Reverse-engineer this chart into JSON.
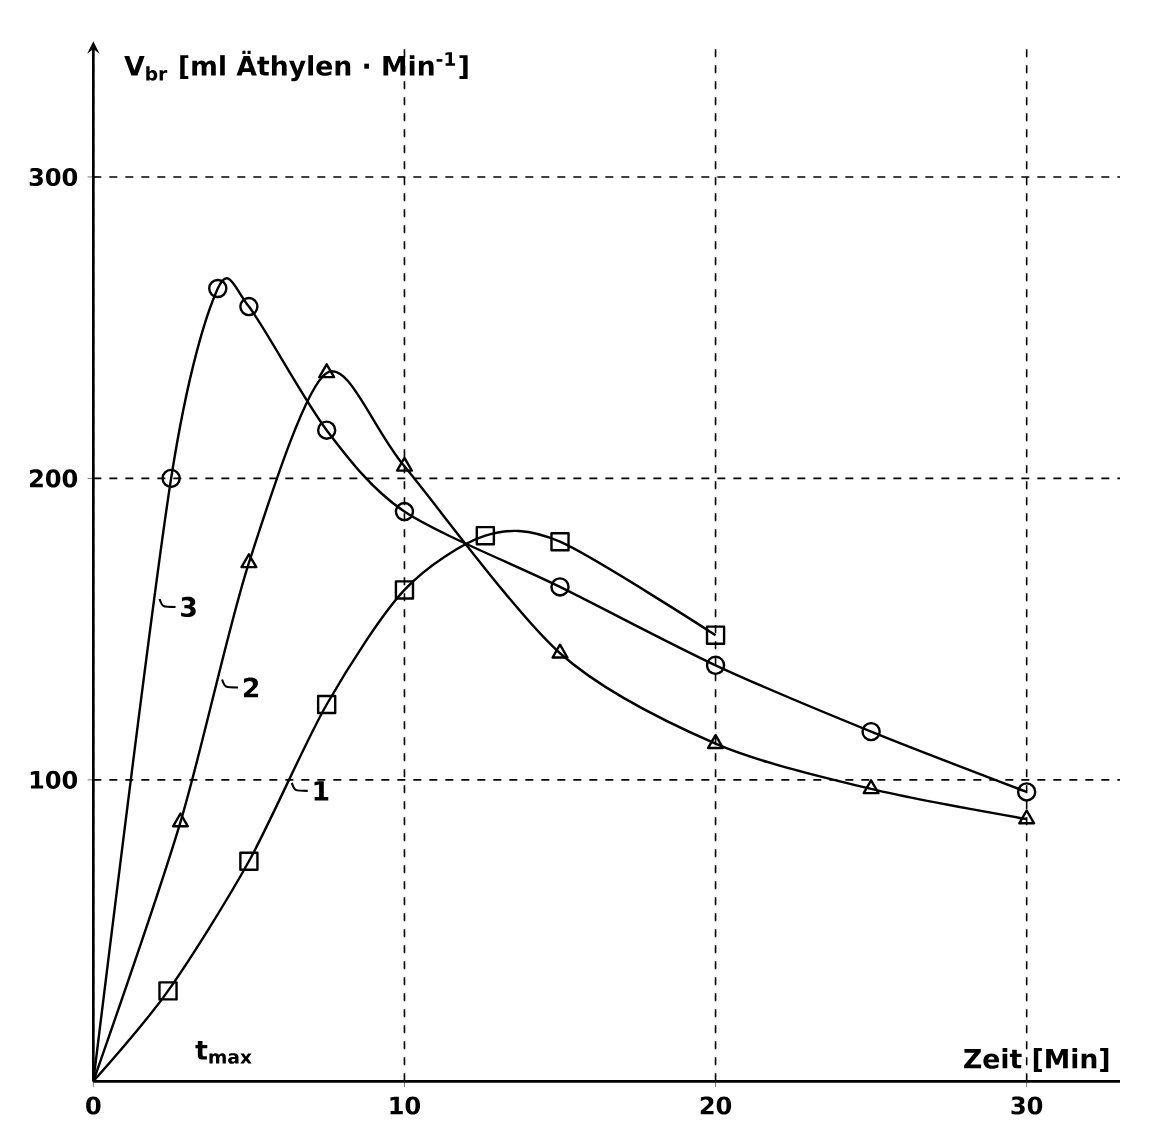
{
  "chart_data": {
    "type": "line",
    "xlabel": "Zeit [Min]",
    "ylabel": "V$_{br}$ [ml Äthylen · Min$^{-1}$]",
    "xlim": [
      0,
      33
    ],
    "ylim": [
      0,
      345
    ],
    "xticks": [
      0,
      10,
      20,
      30
    ],
    "yticks": [
      100,
      200,
      300
    ],
    "grid": true,
    "legend": "left",
    "line_style": "solid",
    "series": [
      {
        "name": "1",
        "color": "#000000",
        "marker": "square",
        "x": [
          0,
          2.4,
          5,
          7.5,
          10,
          12.6,
          15,
          20
        ],
        "values": [
          0,
          30,
          73,
          125,
          163,
          181,
          179,
          148
        ]
      },
      {
        "name": "2",
        "color": "#000000",
        "marker": "triangle",
        "x": [
          0,
          2.8,
          5,
          7.5,
          10,
          15,
          20,
          25,
          30
        ],
        "values": [
          0,
          86,
          172,
          235,
          204,
          142,
          112,
          97,
          87
        ]
      },
      {
        "name": "3",
        "color": "#000000",
        "marker": "circle",
        "x": [
          0,
          2.5,
          4,
          5,
          7.5,
          10,
          15,
          20,
          25,
          30
        ],
        "values": [
          0,
          200,
          263,
          257,
          216,
          189,
          164,
          138,
          116,
          96
        ]
      }
    ],
    "annotations": [
      "t$_{max}$"
    ]
  }
}
